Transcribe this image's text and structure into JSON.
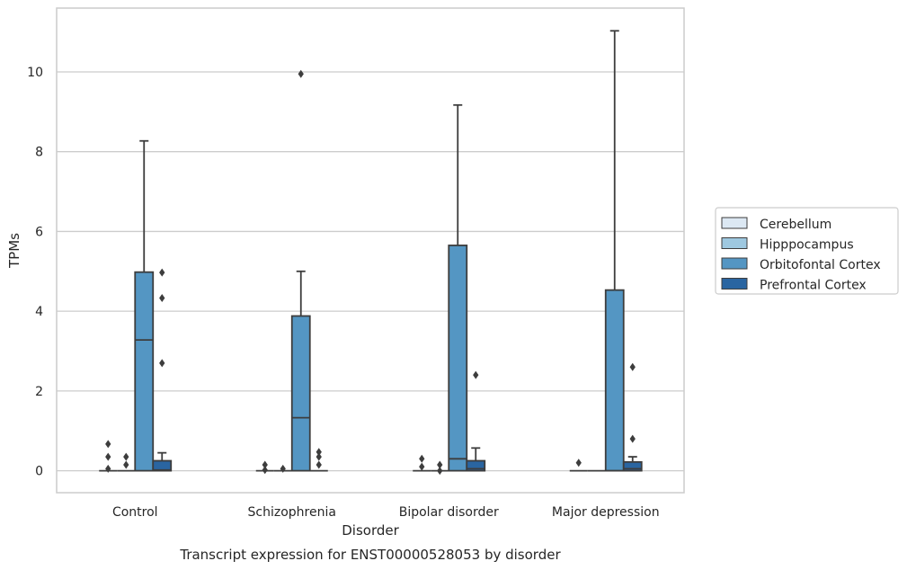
{
  "chart_data": {
    "type": "box",
    "xlabel": "Disorder",
    "ylabel": "TPMs",
    "caption": "Transcript expression for ENST00000528053 by disorder",
    "categories": [
      "Control",
      "Schizophrenia",
      "Bipolar disorder",
      "Major depression"
    ],
    "ylim": [
      -0.55,
      11.6
    ],
    "yticks": [
      0,
      2,
      4,
      6,
      8,
      10
    ],
    "grid": "horizontal",
    "legend_position": "right",
    "series": [
      {
        "name": "Cerebellum",
        "color": "#dce8f3",
        "boxes": [
          {
            "min": 0,
            "q1": 0,
            "median": 0,
            "q3": 0,
            "max": 0,
            "outliers": [
              0.05,
              0.35,
              0.67
            ]
          },
          {
            "min": 0,
            "q1": 0,
            "median": 0,
            "q3": 0,
            "max": 0,
            "outliers": [
              0.02,
              0.15
            ]
          },
          {
            "min": 0,
            "q1": 0,
            "median": 0,
            "q3": 0,
            "max": 0,
            "outliers": [
              0.1,
              0.3
            ]
          },
          {
            "min": 0,
            "q1": 0,
            "median": 0,
            "q3": 0,
            "max": 0,
            "outliers": [
              0.2
            ]
          }
        ]
      },
      {
        "name": "Hipppocampus",
        "color": "#9ec8e0",
        "boxes": [
          {
            "min": 0,
            "q1": 0,
            "median": 0,
            "q3": 0,
            "max": 0,
            "outliers": [
              0.15,
              0.35
            ]
          },
          {
            "min": 0,
            "q1": 0,
            "median": 0,
            "q3": 0,
            "max": 0,
            "outliers": [
              0.05
            ]
          },
          {
            "min": 0,
            "q1": 0,
            "median": 0,
            "q3": 0,
            "max": 0,
            "outliers": [
              0.0,
              0.15
            ]
          },
          {
            "min": 0,
            "q1": 0,
            "median": 0,
            "q3": 0,
            "max": 0,
            "outliers": []
          }
        ]
      },
      {
        "name": "Orbitofontal Cortex",
        "color": "#5496c3",
        "boxes": [
          {
            "min": 0,
            "q1": 0,
            "median": 3.28,
            "q3": 4.98,
            "max": 8.27,
            "outliers": []
          },
          {
            "min": 0,
            "q1": 0,
            "median": 1.33,
            "q3": 3.88,
            "max": 5.0,
            "outliers": [
              9.95
            ]
          },
          {
            "min": 0,
            "q1": 0,
            "median": 0.3,
            "q3": 5.65,
            "max": 9.17,
            "outliers": []
          },
          {
            "min": 0,
            "q1": 0,
            "median": 0,
            "q3": 4.53,
            "max": 11.03,
            "outliers": []
          }
        ]
      },
      {
        "name": "Prefrontal Cortex",
        "color": "#2a65a1",
        "boxes": [
          {
            "min": 0,
            "q1": 0,
            "median": 0.02,
            "q3": 0.25,
            "max": 0.45,
            "outliers": [
              2.7,
              4.33,
              4.97
            ]
          },
          {
            "min": 0,
            "q1": 0,
            "median": 0,
            "q3": 0,
            "max": 0,
            "outliers": [
              0.15,
              0.35,
              0.47
            ]
          },
          {
            "min": 0,
            "q1": 0,
            "median": 0.05,
            "q3": 0.25,
            "max": 0.57,
            "outliers": [
              2.4
            ]
          },
          {
            "min": 0,
            "q1": 0,
            "median": 0.05,
            "q3": 0.22,
            "max": 0.35,
            "outliers": [
              0.8,
              2.6
            ]
          }
        ]
      }
    ]
  }
}
